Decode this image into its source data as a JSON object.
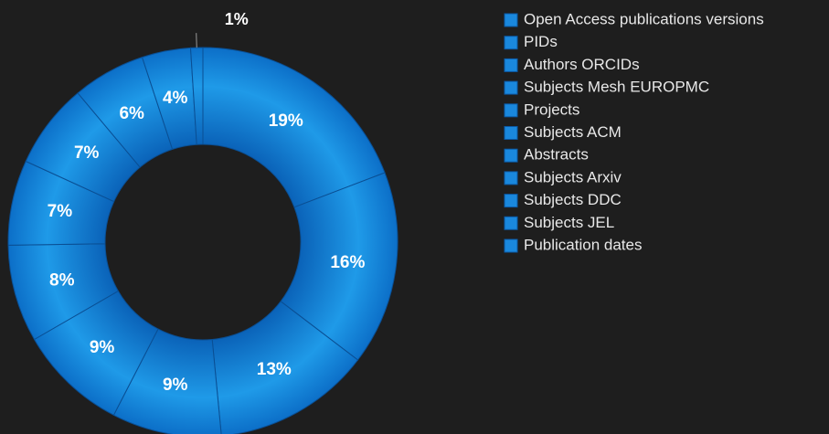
{
  "chart_data": {
    "type": "donut",
    "categories": [
      "Open Access publications versions",
      "PIDs",
      "Authors ORCIDs",
      "Subjects Mesh EUROPMC",
      "Projects",
      "Subjects ACM",
      "Abstracts",
      "Subjects Arxiv",
      "Subjects DDC",
      "Subjects JEL",
      "Publication dates"
    ],
    "values": [
      19,
      16,
      13,
      9,
      9,
      8,
      7,
      7,
      6,
      4,
      1
    ],
    "value_labels": [
      "19%",
      "16%",
      "13%",
      "9%",
      "9%",
      "8%",
      "7%",
      "7%",
      "6%",
      "4%",
      "1%"
    ],
    "color": "#1a88dd",
    "legend": "right"
  }
}
